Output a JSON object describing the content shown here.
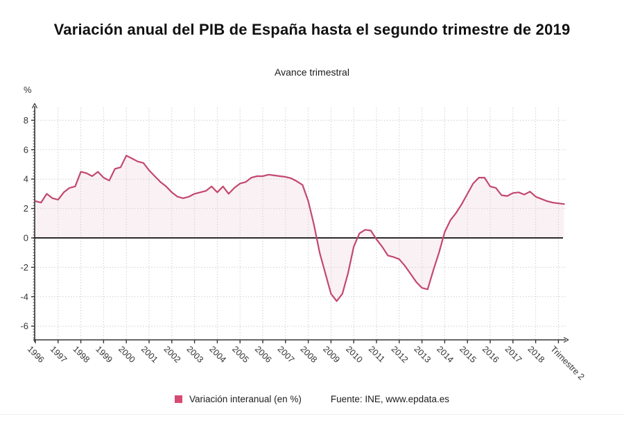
{
  "header": {
    "title": "Variación anual del PIB de España hasta el segundo trimestre de 2019",
    "subtitle": "Avance trimestral"
  },
  "axes": {
    "y_unit_label": "%",
    "y_ticks": [
      8,
      6,
      4,
      2,
      0,
      -2,
      -4,
      -6
    ],
    "x_tick_labels": [
      "1996",
      "1997",
      "1998",
      "1999",
      "2000",
      "2001",
      "2002",
      "2003",
      "2004",
      "2005",
      "2006",
      "2007",
      "2008",
      "2009",
      "2010",
      "2011",
      "2012",
      "2013",
      "2014",
      "2015",
      "2016",
      "2017",
      "2018",
      "Trimestre 2"
    ]
  },
  "legend": {
    "series_label": "Variación interanual (en %)",
    "source": "Fuente: INE, www.epdata.es"
  },
  "colors": {
    "line": "#c2486e",
    "fill_rgba": "rgba(196,74,112,0.08)",
    "legend_square": "#d74b72",
    "grid": "#cfcfcf",
    "zero_line": "#2a2a2a",
    "axis": "#333333",
    "tick_text": "#333333"
  },
  "chart_data": {
    "type": "area",
    "title": "Variación anual del PIB de España hasta el segundo trimestre de 2019",
    "subtitle": "Avance trimestral",
    "ylabel": "%",
    "ylim": [
      -6.9,
      8.9
    ],
    "frequency": "quarterly",
    "x_start": "1996-Q1",
    "x_end": "2019-Q2",
    "grid": true,
    "legend_position": "bottom",
    "series": [
      {
        "name": "Variación interanual (en %)",
        "values": [
          2.5,
          2.4,
          3.0,
          2.7,
          2.6,
          3.1,
          3.4,
          3.5,
          4.5,
          4.4,
          4.2,
          4.5,
          4.1,
          3.9,
          4.7,
          4.8,
          5.6,
          5.4,
          5.2,
          5.1,
          4.6,
          4.2,
          3.8,
          3.5,
          3.1,
          2.8,
          2.7,
          2.8,
          3.0,
          3.1,
          3.2,
          3.5,
          3.1,
          3.5,
          3.0,
          3.4,
          3.7,
          3.8,
          4.1,
          4.2,
          4.2,
          4.3,
          4.25,
          4.2,
          4.15,
          4.05,
          3.85,
          3.6,
          2.5,
          0.9,
          -1.0,
          -2.4,
          -3.8,
          -4.3,
          -3.8,
          -2.4,
          -0.6,
          0.3,
          0.55,
          0.5,
          -0.1,
          -0.6,
          -1.2,
          -1.3,
          -1.45,
          -1.9,
          -2.45,
          -3.0,
          -3.4,
          -3.5,
          -2.2,
          -1.0,
          0.4,
          1.2,
          1.7,
          2.3,
          3.0,
          3.7,
          4.1,
          4.1,
          3.5,
          3.4,
          2.9,
          2.85,
          3.05,
          3.1,
          2.95,
          3.15,
          2.8,
          2.65,
          2.5,
          2.4,
          2.35,
          2.3
        ]
      }
    ]
  }
}
